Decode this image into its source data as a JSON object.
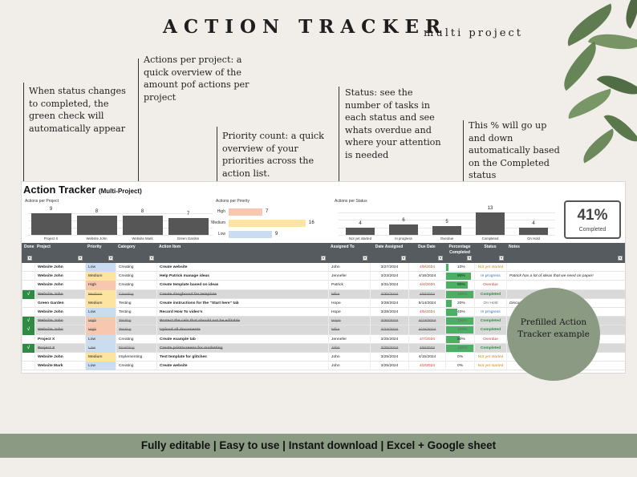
{
  "header": {
    "title": "ACTION TRACKER",
    "subtitle": "multi project"
  },
  "annotations": {
    "status_check": "When status changes to completed, the green check will automatically appear",
    "actions_per_project": "Actions per project: a quick overview of the amount pof actions per project",
    "priority_count": "Priority count: a quick overview of your priorities across the action list.",
    "status": "Status: see the number of tasks in each status and see whats overdue and where your attention is needed",
    "percent": "This % will go up and down automatically based on the Completed status"
  },
  "sheet": {
    "title": "Action Tracker",
    "title_suffix": "(Multi-Project)",
    "completed_pct": "41%",
    "completed_label": "Completed"
  },
  "chart_data": [
    {
      "type": "bar",
      "title": "Actions per Project",
      "categories": [
        "Project X",
        "Website John",
        "Website Mark",
        "Green Garden"
      ],
      "values": [
        9,
        8,
        8,
        7
      ]
    },
    {
      "type": "bar",
      "orientation": "horizontal",
      "title": "Actions per Priority",
      "categories": [
        "High",
        "Medium",
        "Low"
      ],
      "values": [
        7,
        16,
        9
      ],
      "colors": [
        "#f8c7b0",
        "#fde4a1",
        "#c9dcf0"
      ]
    },
    {
      "type": "bar",
      "title": "Actions per Status",
      "categories": [
        "Not yet started",
        "In progress",
        "Overdue",
        "Completed",
        "On Hold"
      ],
      "values": [
        4,
        6,
        5,
        13,
        4
      ]
    }
  ],
  "table": {
    "columns": [
      "Done",
      "Project",
      "Priority",
      "Category",
      "Action Item",
      "Assigned To",
      "Date Assigned",
      "Due Date",
      "Percentage Completed",
      "Status",
      "Notes"
    ],
    "rows": [
      {
        "done": "",
        "project": "Website John",
        "priority": "Low",
        "category": "Creating",
        "action": "Create website",
        "assigned": "John",
        "date": "3/27/2024",
        "due": "4/9/2024",
        "due_over": true,
        "pct": "10%",
        "pct_val": 10,
        "status": "Not yet started",
        "st": "Not",
        "notes": ""
      },
      {
        "done": "",
        "project": "Website John",
        "priority": "Medium",
        "category": "Creating",
        "action": "Help Patrick manage ideas",
        "assigned": "Jennefer",
        "date": "3/23/2024",
        "due": "4/16/2024",
        "due_over": false,
        "pct": "90%",
        "pct_val": 90,
        "status": "In progress",
        "st": "In",
        "notes": "Patrick has a lot of ideas that we need on paper!"
      },
      {
        "done": "",
        "project": "Website John",
        "priority": "High",
        "category": "Creating",
        "action": "Create template based on ideas",
        "assigned": "Patrick",
        "date": "3/31/2024",
        "due": "4/4/2024",
        "due_over": true,
        "pct": "80%",
        "pct_val": 80,
        "status": "Overdue",
        "st": "Overdue",
        "notes": ""
      },
      {
        "done": "√",
        "project": "Website John",
        "priority": "Medium",
        "category": "Creating",
        "action": "Create dasgboard for template",
        "assigned": "Mike",
        "date": "3/30/2024",
        "due": "4/9/2024",
        "due_over": false,
        "pct": "100%",
        "pct_val": 100,
        "status": "Completed",
        "st": "Completed",
        "notes": ""
      },
      {
        "done": "",
        "project": "Green Garden",
        "priority": "Medium",
        "category": "Testing",
        "action": "Create instructions for the \"Start here\" tab",
        "assigned": "Hope",
        "date": "3/28/2024",
        "due": "5/14/2024",
        "due_over": false,
        "pct": "20%",
        "pct_val": 20,
        "status": "On Hold",
        "st": "OnHold",
        "notes": "Discuss if Start here is needed."
      },
      {
        "done": "",
        "project": "Website John",
        "priority": "Low",
        "category": "Testing",
        "action": "Record How To video's",
        "assigned": "Hope",
        "date": "3/28/2024",
        "due": "4/5/2024",
        "due_over": true,
        "pct": "40%",
        "pct_val": 40,
        "status": "In progress",
        "st": "In",
        "notes": ""
      },
      {
        "done": "√",
        "project": "Website John",
        "priority": "High",
        "category": "Testing",
        "action": "Protect the cels that should not be editable",
        "assigned": "Hope",
        "date": "3/30/2024",
        "due": "4/13/2024",
        "due_over": false,
        "pct": "100%",
        "pct_val": 100,
        "status": "Completed",
        "st": "Completed",
        "notes": ""
      },
      {
        "done": "√",
        "project": "Website John",
        "priority": "High",
        "category": "Testing",
        "action": "Upload all documents",
        "assigned": "Mike",
        "date": "3/23/2024",
        "due": "4/15/2024",
        "due_over": false,
        "pct": "100%",
        "pct_val": 100,
        "status": "Completed",
        "st": "Completed",
        "notes": ""
      },
      {
        "done": "",
        "project": "Project X",
        "priority": "Low",
        "category": "Creating",
        "action": "Create example tab",
        "assigned": "Jennefer",
        "date": "3/25/2024",
        "due": "4/7/2024",
        "due_over": true,
        "pct": "50%",
        "pct_val": 50,
        "status": "Overdue",
        "st": "Overdue",
        "notes": ""
      },
      {
        "done": "√",
        "project": "Project X",
        "priority": "Low",
        "category": "Finishing",
        "action": "Create printscreens for marketing",
        "assigned": "John",
        "date": "3/25/2024",
        "due": "4/9/2024",
        "due_over": false,
        "pct": "100%",
        "pct_val": 100,
        "status": "Completed",
        "st": "Completed",
        "notes": ""
      },
      {
        "done": "",
        "project": "Website John",
        "priority": "Medium",
        "category": "Implementing",
        "action": "Test template for glitches",
        "assigned": "John",
        "date": "3/25/2024",
        "due": "4/15/2024",
        "due_over": false,
        "pct": "0%",
        "pct_val": 0,
        "status": "Not yet started",
        "st": "Not",
        "notes": ""
      },
      {
        "done": "",
        "project": "Website Mark",
        "priority": "Low",
        "category": "Creating",
        "action": "Create website",
        "assigned": "John",
        "date": "3/25/2024",
        "due": "4/2/2024",
        "due_over": true,
        "pct": "0%",
        "pct_val": 0,
        "status": "Not yet started",
        "st": "Not",
        "notes": ""
      }
    ]
  },
  "circle_text": "Prefilled Action Tracker example",
  "banner": "Fully editable | Easy to use | Instant download | Excel + Google sheet"
}
